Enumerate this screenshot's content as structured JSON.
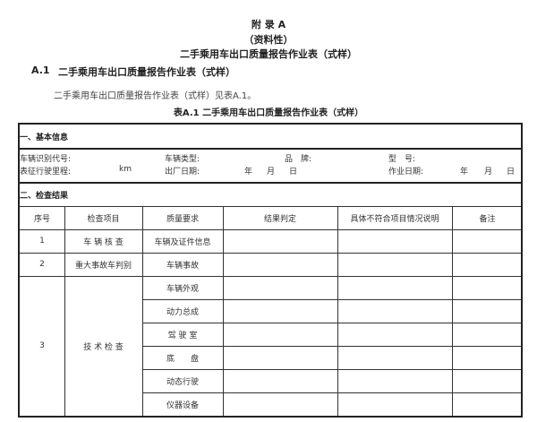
{
  "heading": {
    "appendix": "附 录 A",
    "nature": "（资料性）",
    "subtitle": "二手乘用车出口质量报告作业表（式样）"
  },
  "section": {
    "number": "A.1",
    "title": "二手乘用车出口质量报告作业表（式样）",
    "paragraph": "二手乘用车出口质量报告作业表（式样）见表A.1。"
  },
  "table_caption": "表A.1 二手乘用车出口质量报告作业表（式样）",
  "basic_info": {
    "title": "一、基本信息",
    "vin_label": "车辆识别代号:",
    "type_label": "车辆类型:",
    "brand_label": "品　牌:",
    "model_label": "型　号:",
    "mileage_label": "表征行驶里程:",
    "mileage_unit": "km",
    "mfg_date_label": "出厂日期:",
    "work_date_label": "作业日期:",
    "year": "年",
    "month": "月",
    "day": "日"
  },
  "results": {
    "title": "二、检查结果",
    "columns": [
      "序号",
      "检查项目",
      "质量要求",
      "结果判定",
      "具体不符合项目情况说明",
      "备注"
    ],
    "rows": [
      {
        "no": "1",
        "item": "车 辆 核 查",
        "requirements": [
          "车辆及证件信息"
        ]
      },
      {
        "no": "2",
        "item": "重大事故车判别",
        "requirements": [
          "车辆事故"
        ]
      },
      {
        "no": "3",
        "item": "技 术 检 查",
        "requirements": [
          "车辆外观",
          "动力总成",
          "驾 驶 室",
          "底　　盘",
          "动态行驶",
          "仪器设备"
        ]
      }
    ]
  }
}
